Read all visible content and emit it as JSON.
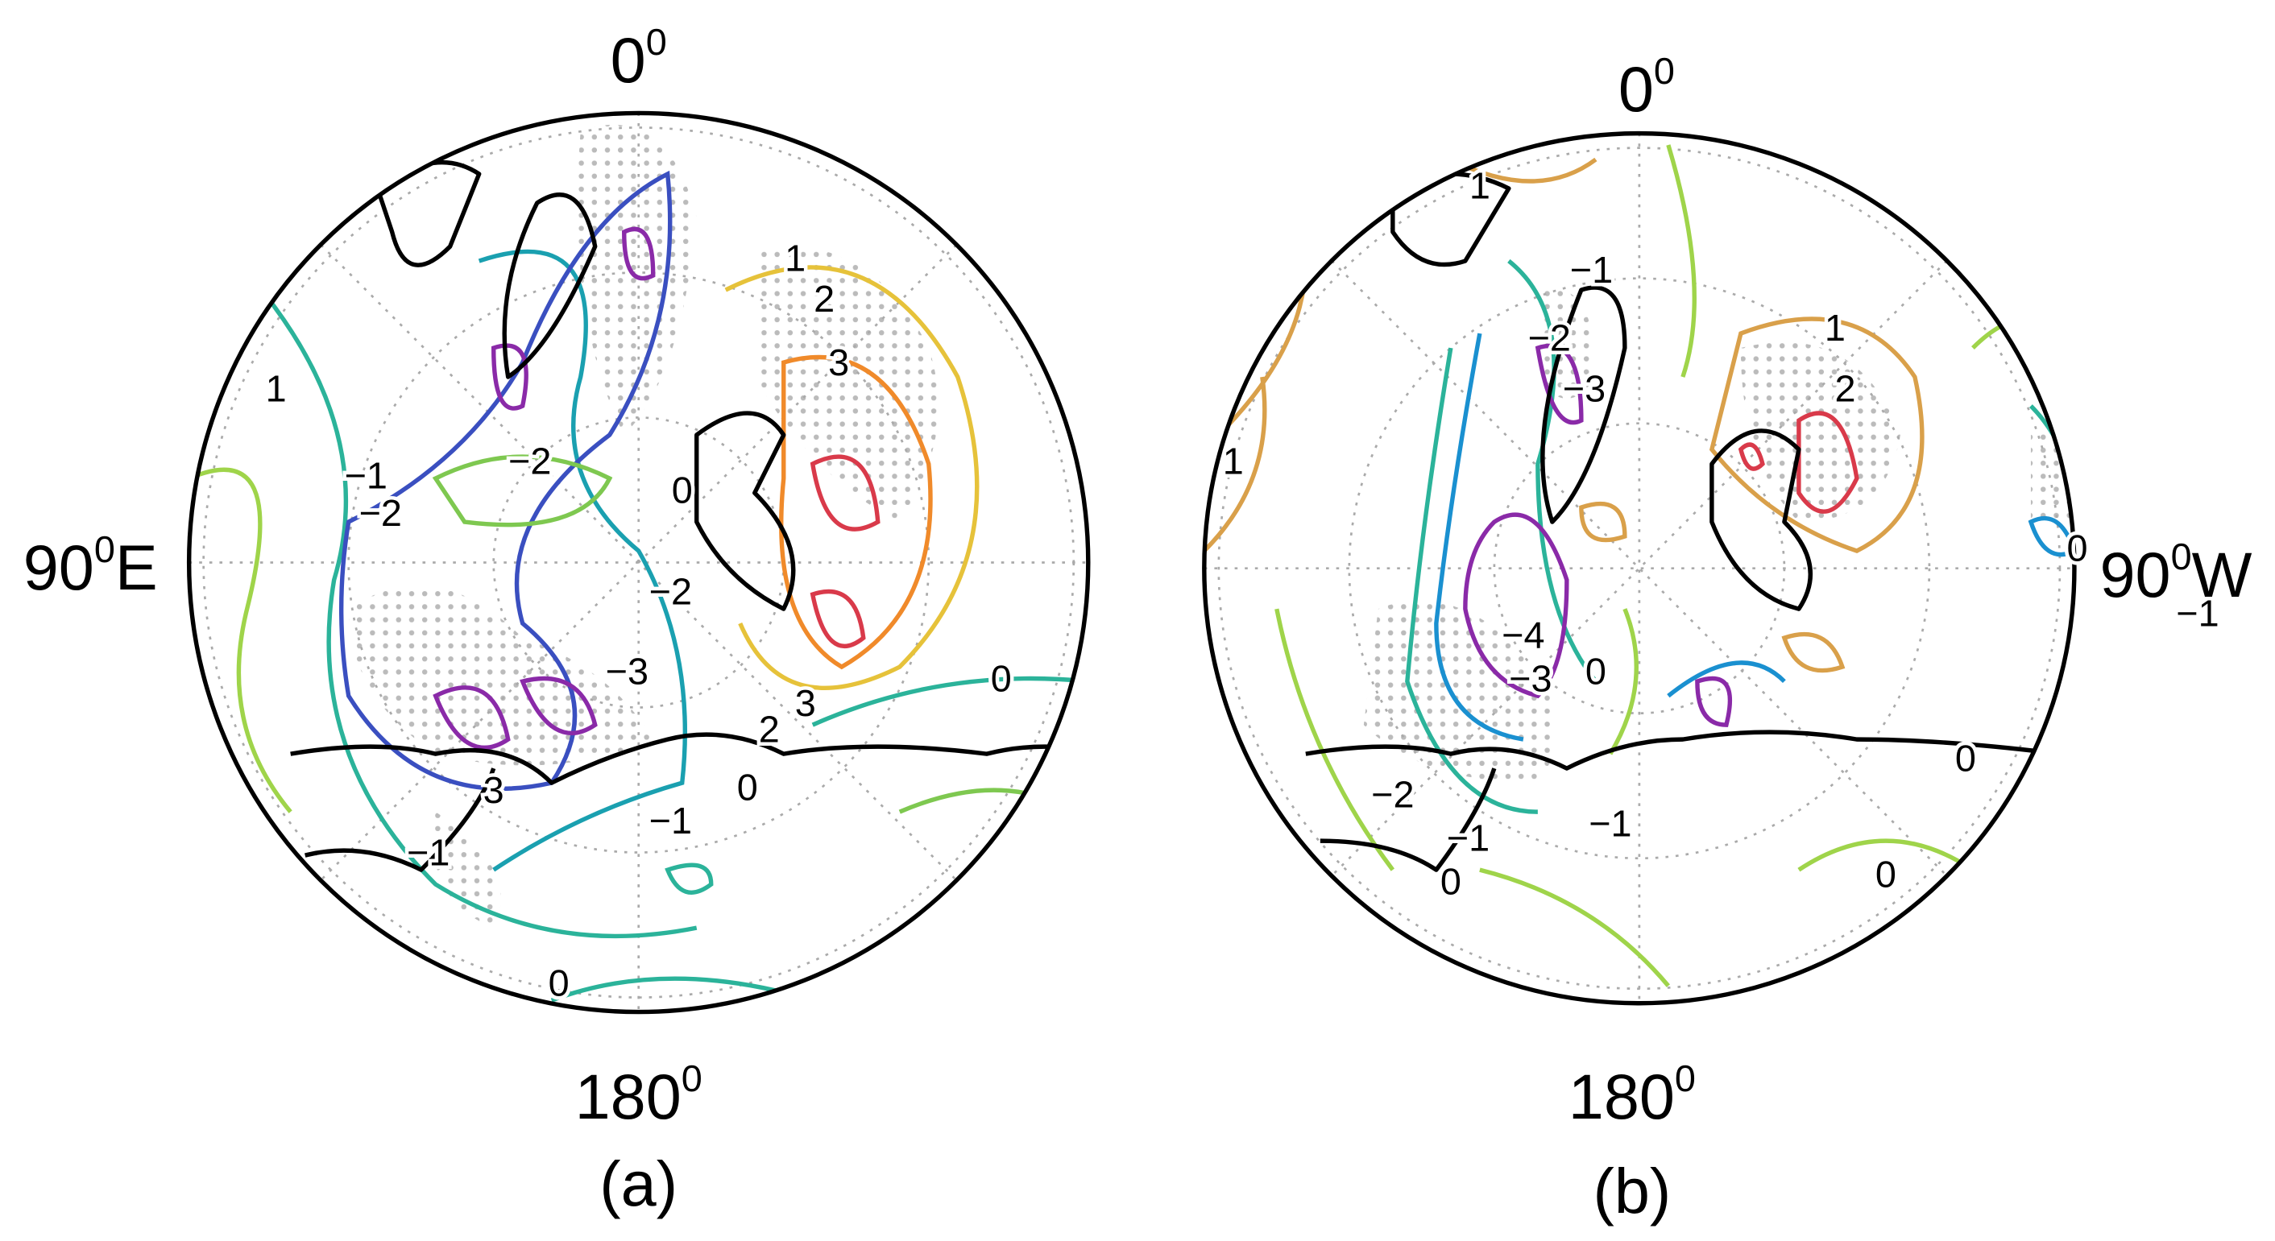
{
  "panels": [
    {
      "caption": "(a)",
      "top": {
        "text": "0",
        "sup": "0"
      },
      "side": {
        "text": "90",
        "sup": "0",
        "suffix": "E"
      },
      "bottom": {
        "text": "180",
        "sup": "0"
      },
      "contour_labels": [
        "1",
        "−1",
        "−2",
        "−2",
        "0",
        "−2",
        "−3",
        "1",
        "2",
        "3",
        "3",
        "2",
        "0",
        "0",
        "−1",
        "−1",
        "3",
        "0"
      ]
    },
    {
      "caption": "(b)",
      "top": {
        "text": "0",
        "sup": "0"
      },
      "side": {
        "text": "90",
        "sup": "0",
        "suffix": "W"
      },
      "bottom": {
        "text": "180",
        "sup": "0"
      },
      "contour_labels": [
        "1",
        "−1",
        "−2",
        "−3",
        "1",
        "1",
        "2",
        "0",
        "−1",
        "−4",
        "−3",
        "0",
        "−2",
        "−1",
        "−1",
        "0",
        "0",
        "0"
      ]
    }
  ]
}
